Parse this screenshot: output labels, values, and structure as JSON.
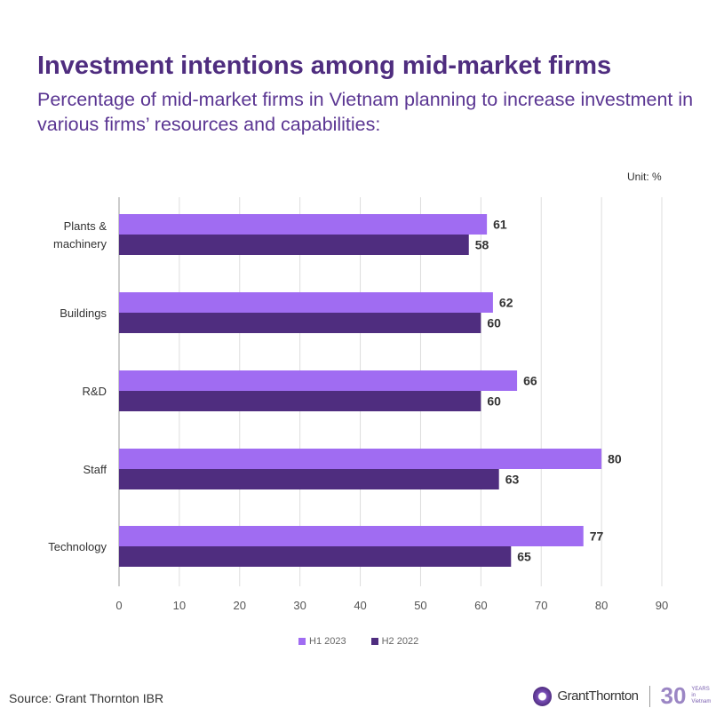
{
  "title": "Investment intentions among mid-market firms",
  "subtitle": "Percentage of mid-market firms in Vietnam planning to increase investment in various firms’ resources and capabilities:",
  "unit": "Unit: %",
  "source": "Source: Grant Thornton IBR",
  "logo": {
    "name": "GrantThornton",
    "years": "30",
    "years_text": "YEARS",
    "years_sub": "in Vietnam"
  },
  "colors": {
    "H1 2023": "#a06cf2",
    "H2 2022": "#4f2d7f",
    "title": "#4f2d7f"
  },
  "chart_data": {
    "type": "bar",
    "orientation": "horizontal",
    "categories": [
      "Plants & machinery",
      "Buildings",
      "R&D",
      "Staff",
      "Technology"
    ],
    "series": [
      {
        "name": "H1 2023",
        "values": [
          61,
          62,
          66,
          80,
          77
        ]
      },
      {
        "name": "H2 2022",
        "values": [
          58,
          60,
          60,
          63,
          65
        ]
      }
    ],
    "xlim": [
      0,
      90
    ],
    "xticks": [
      0,
      10,
      20,
      30,
      40,
      50,
      60,
      70,
      80,
      90
    ],
    "grid": true,
    "legend": "bottom"
  }
}
